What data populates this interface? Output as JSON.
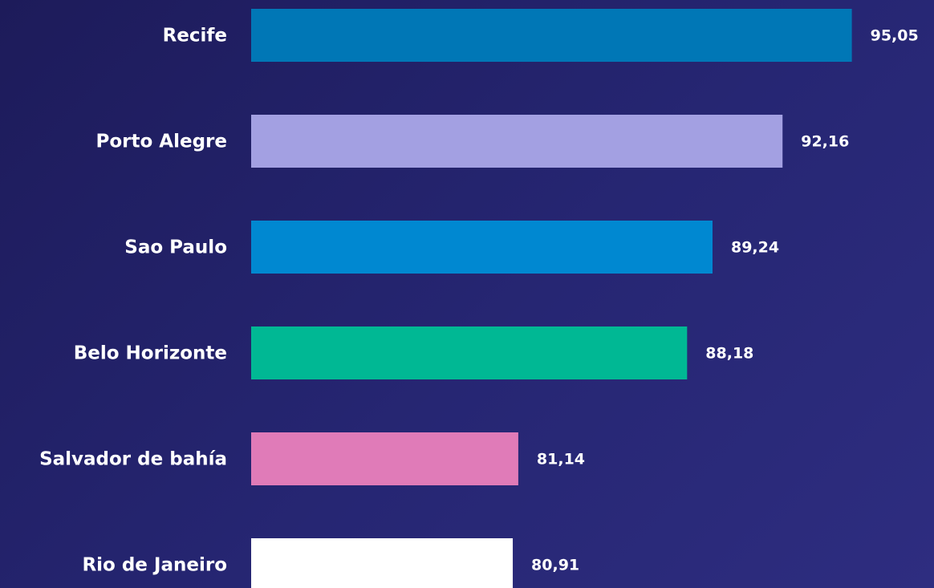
{
  "chart_data": {
    "type": "bar",
    "orientation": "horizontal",
    "categories": [
      "Recife",
      "Porto Alegre",
      "Sao Paulo",
      "Belo Horizonte",
      "Salvador de bahía",
      "Rio de Janeiro"
    ],
    "values": [
      95.05,
      92.16,
      89.24,
      88.18,
      81.14,
      80.91
    ],
    "value_labels": [
      "95,05",
      "92,16",
      "89,24",
      "88,18",
      "81,14",
      "80,91"
    ],
    "colors": [
      "#0077b6",
      "#a3a0e2",
      "#0088d1",
      "#00b894",
      "#e07bb8",
      "#ffffff"
    ],
    "xlim": [
      70,
      96
    ]
  }
}
